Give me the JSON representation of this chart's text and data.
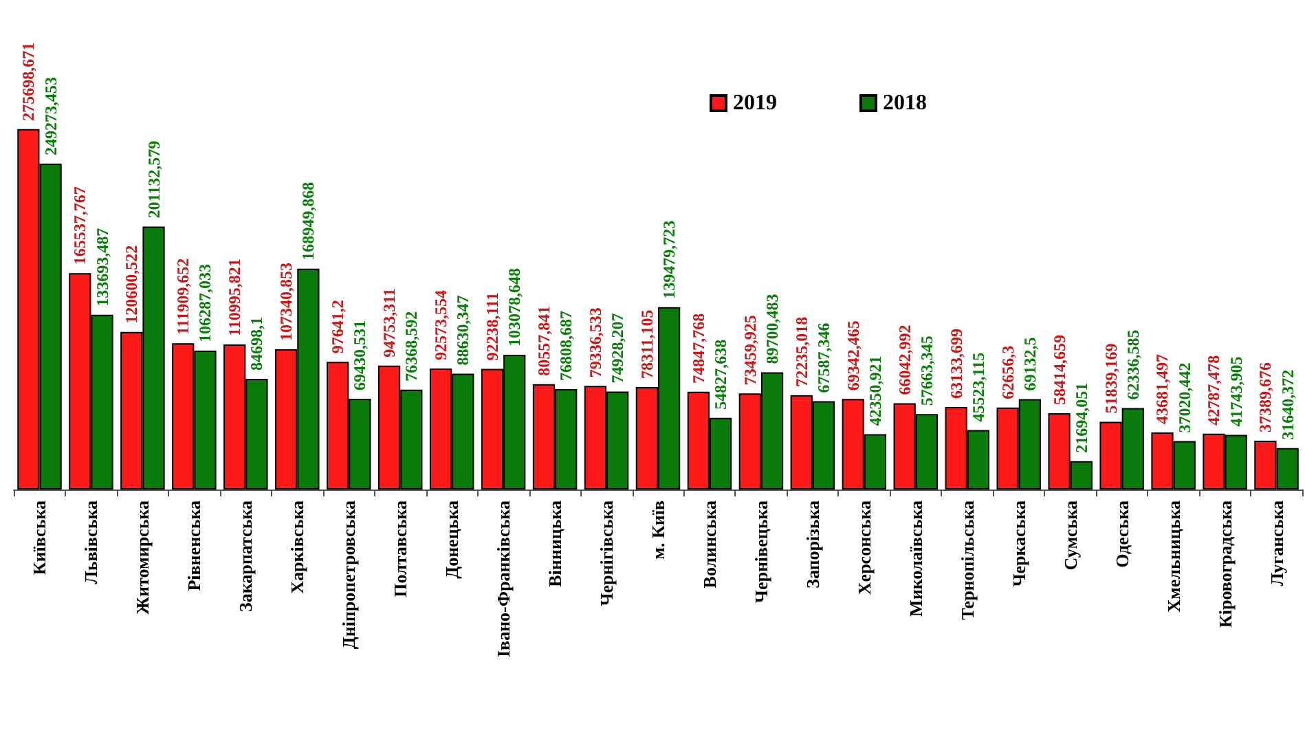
{
  "chart_data": {
    "type": "bar",
    "categories": [
      "Київська",
      "Львівська",
      "Житомирська",
      "Рівненська",
      "Закарпатська",
      "Харківська",
      "Дніпропетровська",
      "Полтавська",
      "Донецька",
      "Івано-Франківська",
      "Вінницька",
      "Чернігівська",
      "м. Київ",
      "Волинська",
      "Чернівецька",
      "Запорізька",
      "Херсонська",
      "Миколаївська",
      "Тернопільська",
      "Черкаська",
      "Сумська",
      "Одеська",
      "Хмельницька",
      "Кіровоградська",
      "Луганська"
    ],
    "legend": "top right",
    "series": [
      {
        "name": "2019",
        "color": "#ff1a1a",
        "values": [
          275698.671,
          165537.767,
          120600.522,
          111909.652,
          110995.821,
          107340.853,
          97641.2,
          94753.311,
          92573.554,
          92238.111,
          80557.841,
          79336.533,
          78311.105,
          74847.768,
          73459.925,
          72235.018,
          69342.465,
          66042.992,
          63133.699,
          62656.3,
          58414.659,
          51839.169,
          43681.497,
          42787.478,
          37389.676
        ],
        "value_labels": [
          "275698,671",
          "165537,767",
          "120600,522",
          "111909,652",
          "110995,821",
          "107340,853",
          "97641,2",
          "94753,311",
          "92573,554",
          "92238,111",
          "80557,841",
          "79336,533",
          "78311,105",
          "74847,768",
          "73459,925",
          "72235,018",
          "69342,465",
          "66042,992",
          "63133,699",
          "62656,3",
          "58414,659",
          "51839,169",
          "43681,497",
          "42787,478",
          "37389,676"
        ]
      },
      {
        "name": "2018",
        "color": "#0a7a0a",
        "values": [
          249273.453,
          133693.487,
          201132.579,
          106287.033,
          84698.1,
          168949.868,
          69430.531,
          76368.592,
          88630.347,
          103078.648,
          76808.687,
          74928.207,
          139479.723,
          54827.638,
          89700.483,
          67587.346,
          42350.921,
          57663.345,
          45523.115,
          69132.5,
          21694.051,
          62336.585,
          37020.442,
          41743.905,
          31640.372
        ],
        "value_labels": [
          "249273,453",
          "133693,487",
          "201132,579",
          "106287,033",
          "84698,1",
          "168949,868",
          "69430,531",
          "76368,592",
          "88630,347",
          "103078,648",
          "76808,687",
          "74928,207",
          "139479,723",
          "54827,638",
          "89700,483",
          "67587,346",
          "42350,921",
          "57663,345",
          "45523,115",
          "69132,5",
          "21694,051",
          "62336,585",
          "37020,442",
          "41743,905",
          "31640,372"
        ]
      }
    ]
  }
}
